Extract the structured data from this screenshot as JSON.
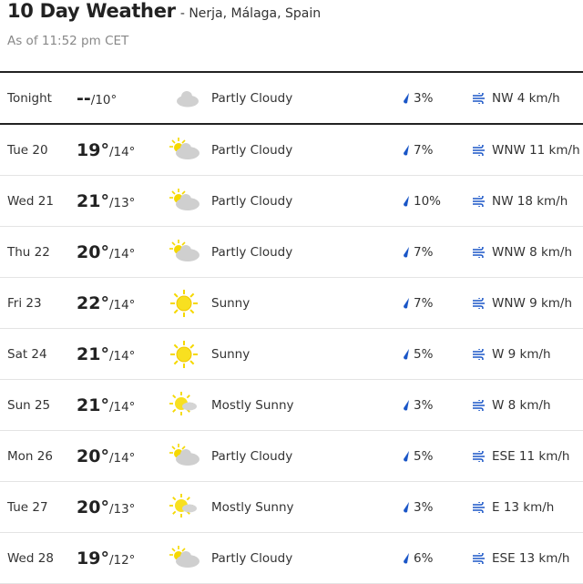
{
  "header": {
    "title": "10 Day Weather",
    "location": "- Nerja, Málaga, Spain",
    "as_of": "As of 11:52 pm CET"
  },
  "colors": {
    "accent": "#1a56c7",
    "sun": "#f5d800",
    "cloud": "#cfcfcf"
  },
  "days": [
    {
      "day": "Tonight",
      "hi": "--",
      "lo": "/10°",
      "icon": "night-partly-cloudy-icon",
      "condition": "Partly Cloudy",
      "precip": "3%",
      "wind": "NW 4 km/h"
    },
    {
      "day": "Tue 20",
      "hi": "19°",
      "lo": "/14°",
      "icon": "partly-cloudy-icon",
      "condition": "Partly Cloudy",
      "precip": "7%",
      "wind": "WNW 11 km/h"
    },
    {
      "day": "Wed 21",
      "hi": "21°",
      "lo": "/13°",
      "icon": "partly-cloudy-icon",
      "condition": "Partly Cloudy",
      "precip": "10%",
      "wind": "NW 18 km/h"
    },
    {
      "day": "Thu 22",
      "hi": "20°",
      "lo": "/14°",
      "icon": "partly-cloudy-icon",
      "condition": "Partly Cloudy",
      "precip": "7%",
      "wind": "WNW 8 km/h"
    },
    {
      "day": "Fri 23",
      "hi": "22°",
      "lo": "/14°",
      "icon": "sunny-icon",
      "condition": "Sunny",
      "precip": "7%",
      "wind": "WNW 9 km/h"
    },
    {
      "day": "Sat 24",
      "hi": "21°",
      "lo": "/14°",
      "icon": "sunny-icon",
      "condition": "Sunny",
      "precip": "5%",
      "wind": "W 9 km/h"
    },
    {
      "day": "Sun 25",
      "hi": "21°",
      "lo": "/14°",
      "icon": "mostly-sunny-icon",
      "condition": "Mostly Sunny",
      "precip": "3%",
      "wind": "W 8 km/h"
    },
    {
      "day": "Mon 26",
      "hi": "20°",
      "lo": "/14°",
      "icon": "partly-cloudy-icon",
      "condition": "Partly Cloudy",
      "precip": "5%",
      "wind": "ESE 11 km/h"
    },
    {
      "day": "Tue 27",
      "hi": "20°",
      "lo": "/13°",
      "icon": "mostly-sunny-icon",
      "condition": "Mostly Sunny",
      "precip": "3%",
      "wind": "E 13 km/h"
    },
    {
      "day": "Wed 28",
      "hi": "19°",
      "lo": "/12°",
      "icon": "partly-cloudy-icon",
      "condition": "Partly Cloudy",
      "precip": "6%",
      "wind": "ESE 13 km/h"
    }
  ]
}
